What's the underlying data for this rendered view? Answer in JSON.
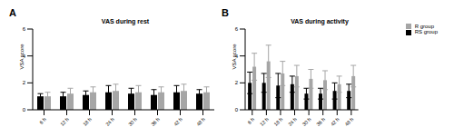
{
  "chart_data": [
    {
      "type": "bar",
      "label": "A",
      "title": "VAS during rest",
      "y_label": "VSA score",
      "categories": [
        "6 h",
        "12 h",
        "18 h",
        "24 h",
        "30 h",
        "36 h",
        "42 h",
        "48 h"
      ],
      "ylim": [
        0,
        6
      ],
      "yticks": [
        0,
        2,
        4,
        6
      ],
      "grid": false,
      "series": [
        {
          "name": "RS group",
          "color": "#000000",
          "values": [
            1.0,
            1.0,
            1.1,
            1.3,
            1.2,
            1.1,
            1.3,
            1.2
          ],
          "errors": [
            0.2,
            0.3,
            0.3,
            0.5,
            0.4,
            0.4,
            0.5,
            0.3
          ]
        },
        {
          "name": "R group",
          "color": "#a6a6a6",
          "values": [
            1.0,
            1.2,
            1.3,
            1.4,
            1.3,
            1.3,
            1.4,
            1.3
          ],
          "errors": [
            0.3,
            0.4,
            0.4,
            0.5,
            0.5,
            0.4,
            0.5,
            0.4
          ]
        }
      ]
    },
    {
      "type": "bar",
      "label": "B",
      "title": "VAS during activity",
      "y_label": "VSA score",
      "categories": [
        "6 h",
        "12 h",
        "18 h",
        "24 h",
        "30 h",
        "36 h",
        "42 h",
        "48 h"
      ],
      "ylim": [
        0,
        6
      ],
      "yticks": [
        0,
        2,
        4,
        6
      ],
      "grid": false,
      "legend": "upper right",
      "series": [
        {
          "name": "RS group",
          "color": "#000000",
          "values": [
            2.0,
            2.0,
            1.8,
            1.9,
            1.2,
            1.2,
            1.4,
            1.4
          ],
          "errors": [
            0.8,
            0.7,
            0.9,
            0.6,
            0.4,
            0.4,
            0.6,
            0.5
          ]
        },
        {
          "name": "R group",
          "color": "#a6a6a6",
          "values": [
            3.2,
            3.6,
            2.7,
            2.5,
            2.3,
            2.2,
            1.9,
            2.5
          ],
          "errors": [
            1.0,
            1.2,
            0.9,
            0.8,
            0.7,
            0.7,
            0.6,
            0.8
          ]
        }
      ]
    }
  ]
}
